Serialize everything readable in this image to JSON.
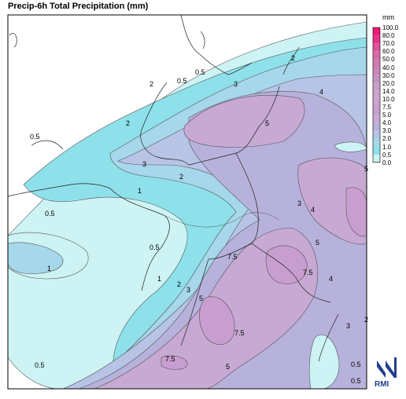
{
  "title": "Precip-6h Total Precipitation (mm)",
  "legend": {
    "unit": "mm",
    "levels": [
      {
        "value": "100.0",
        "color": "#f01a78"
      },
      {
        "value": "80.0",
        "color": "#e8338a"
      },
      {
        "value": "70.0",
        "color": "#e0519a"
      },
      {
        "value": "60.0",
        "color": "#d86aa8"
      },
      {
        "value": "50.0",
        "color": "#d07ab2"
      },
      {
        "value": "40.0",
        "color": "#c986ba"
      },
      {
        "value": "30.0",
        "color": "#c592c0"
      },
      {
        "value": "20.0",
        "color": "#c79fc8"
      },
      {
        "value": "14.0",
        "color": "#caa6cc"
      },
      {
        "value": "10.0",
        "color": "#cca3cf"
      },
      {
        "value": "7.5",
        "color": "#c89ed0"
      },
      {
        "value": "5.0",
        "color": "#c7a9d4"
      },
      {
        "value": "4.0",
        "color": "#b7b2dc"
      },
      {
        "value": "3.0",
        "color": "#b7c4e6"
      },
      {
        "value": "2.0",
        "color": "#a6d7ea"
      },
      {
        "value": "1.0",
        "color": "#8ee0ea"
      },
      {
        "value": "0.5",
        "color": "#cdf3f4"
      },
      {
        "value": "0.0",
        "color": "#ffffff"
      }
    ]
  },
  "contour_labels": [
    "0.5",
    "0.5",
    "0.5",
    "0.5",
    "0.5",
    "1",
    "1",
    "1",
    "2",
    "2",
    "2",
    "2",
    "2",
    "2",
    "3",
    "3",
    "3",
    "3",
    "3",
    "4",
    "4",
    "4",
    "5",
    "5",
    "5",
    "5",
    "5",
    "7.5",
    "7.5",
    "7.5",
    "7.5",
    "0.5",
    "0.5",
    "0.5"
  ],
  "logo": {
    "text": "RMI",
    "color": "#1f3e8c"
  }
}
